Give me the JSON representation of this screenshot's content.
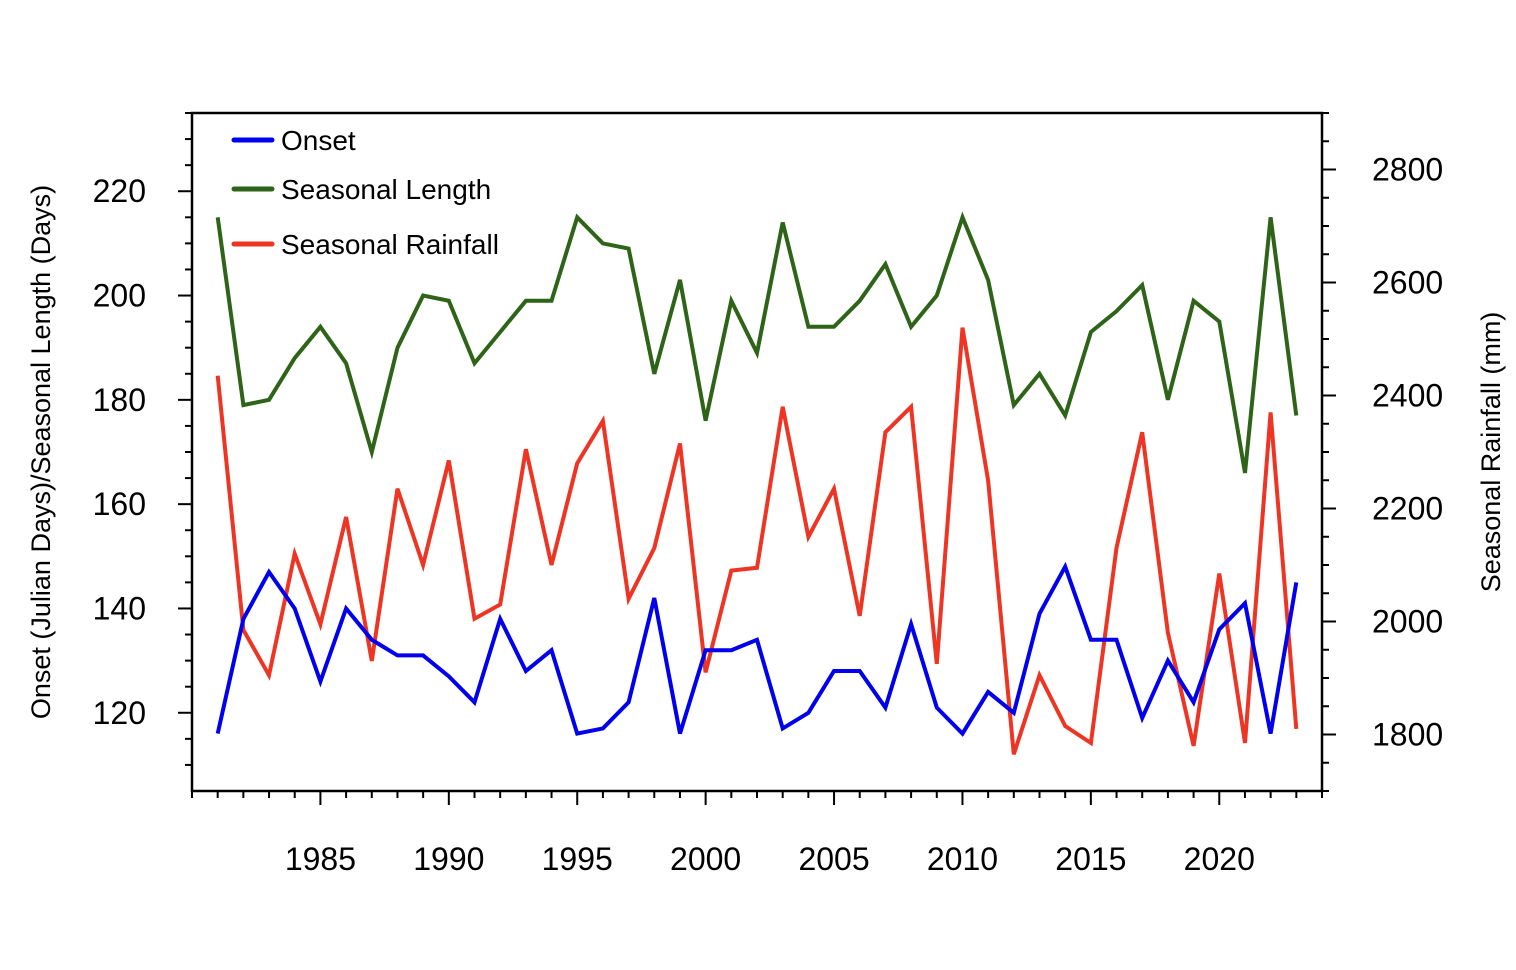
{
  "chart_data": {
    "type": "line",
    "x": [
      1981,
      1982,
      1983,
      1984,
      1985,
      1986,
      1987,
      1988,
      1989,
      1990,
      1991,
      1992,
      1993,
      1994,
      1995,
      1996,
      1997,
      1998,
      1999,
      2000,
      2001,
      2002,
      2003,
      2004,
      2005,
      2006,
      2007,
      2008,
      2009,
      2010,
      2011,
      2012,
      2013,
      2014,
      2015,
      2016,
      2017,
      2018,
      2019,
      2020,
      2021,
      2022,
      2023
    ],
    "xlim": [
      1980,
      2024
    ],
    "xticks": [
      1985,
      1990,
      1995,
      2000,
      2005,
      2010,
      2015,
      2020
    ],
    "ylabel_left": "Onset (Julian Days)/Seasonal Length (Days)",
    "ylabel_right": "Seasonal Rainfall (mm)",
    "ylim_left": [
      105,
      235
    ],
    "yticks_left": [
      120,
      140,
      160,
      180,
      200,
      220
    ],
    "ylim_right": [
      1700,
      2900
    ],
    "yticks_right": [
      1800,
      2000,
      2200,
      2400,
      2600,
      2800
    ],
    "legend_position": "top-left",
    "series": [
      {
        "name": "Onset",
        "axis": "left",
        "color": "#0000ee",
        "values": [
          116,
          138,
          147,
          140,
          126,
          140,
          134,
          131,
          131,
          127,
          122,
          138,
          128,
          132,
          116,
          117,
          122,
          142,
          116,
          132,
          132,
          134,
          117,
          120,
          128,
          128,
          121,
          137,
          121,
          116,
          124,
          120,
          139,
          148,
          134,
          134,
          119,
          130,
          122,
          136,
          141,
          116,
          145
        ]
      },
      {
        "name": "Seasonal Length",
        "axis": "left",
        "color": "#2e6417",
        "values": [
          215,
          179,
          180,
          188,
          194,
          187,
          170,
          190,
          200,
          199,
          187,
          193,
          199,
          199,
          215,
          210,
          209,
          185,
          203,
          176,
          199,
          189,
          214,
          194,
          194,
          199,
          206,
          194,
          200,
          215,
          203,
          179,
          185,
          177,
          193,
          197,
          202,
          180,
          199,
          195,
          166,
          215,
          177
        ]
      },
      {
        "name": "Seasonal Rainfall",
        "axis": "right",
        "color": "#ee3524",
        "values": [
          2435,
          1985,
          1905,
          2120,
          1995,
          2185,
          1930,
          2235,
          2100,
          2285,
          2005,
          2030,
          2305,
          2100,
          2280,
          2355,
          2040,
          2130,
          2315,
          1910,
          2090,
          2095,
          2380,
          2150,
          2235,
          2010,
          2335,
          2380,
          1925,
          2520,
          2250,
          1765,
          1905,
          1815,
          1785,
          2130,
          2335,
          1980,
          1780,
          2085,
          1785,
          2370,
          1810
        ]
      }
    ]
  }
}
